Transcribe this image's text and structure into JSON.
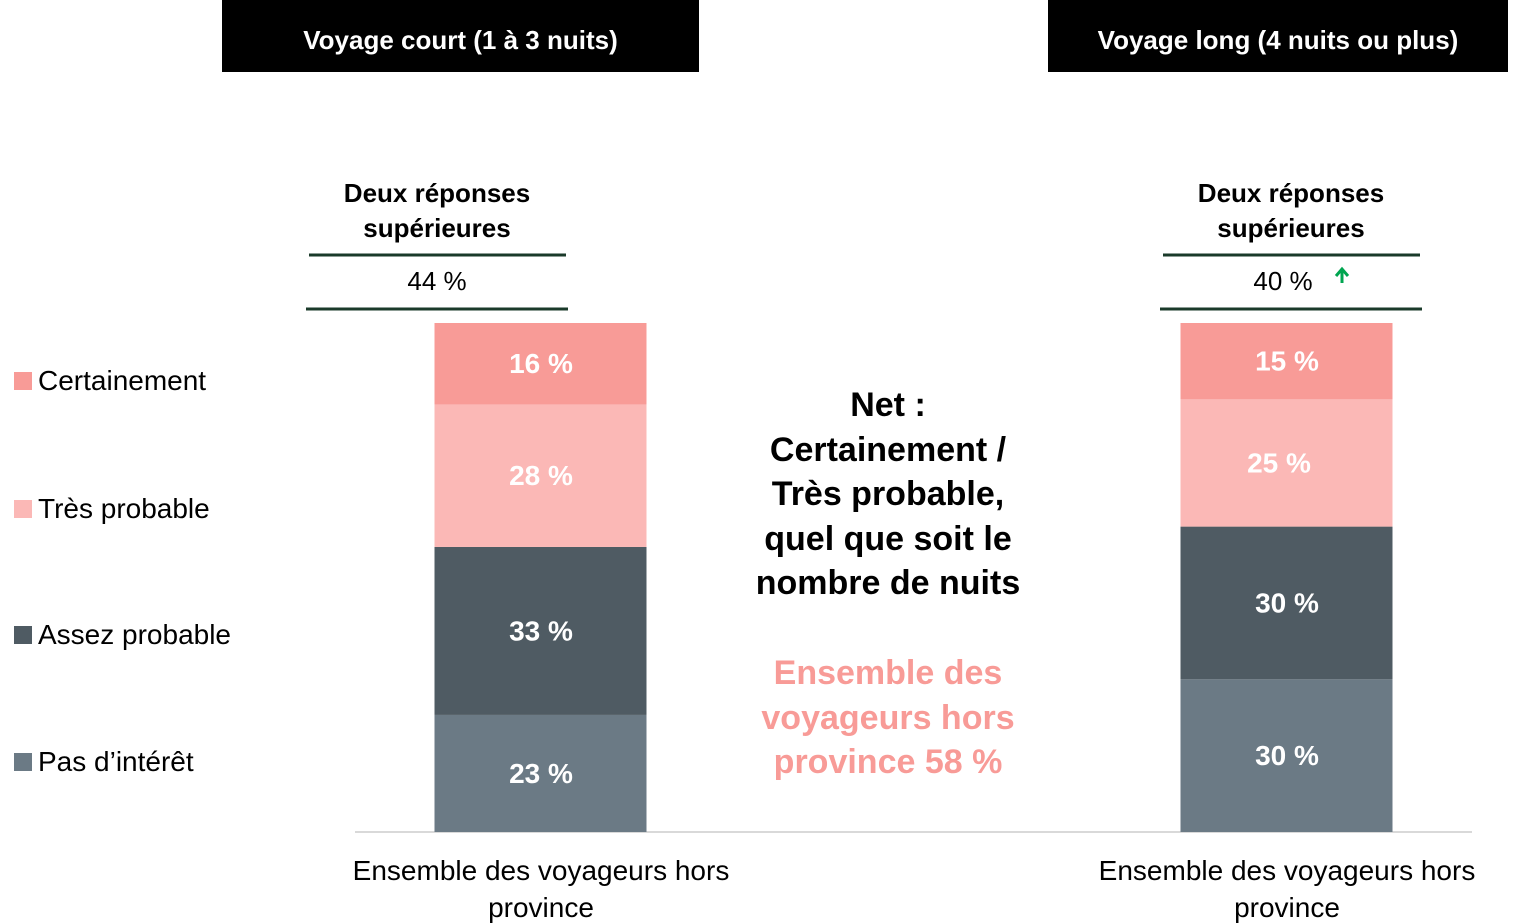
{
  "chart_data": {
    "type": "stacked_bar",
    "panels": [
      "Voyage court (1 à 3 nuits)",
      "Voyage long (4 nuits ou plus)"
    ],
    "categories": [
      "Ensemble des voyageurs hors province",
      "Ensemble des voyageurs hors province"
    ],
    "top_two": {
      "title": "Deux réponses supérieures",
      "values": [
        44,
        40
      ],
      "value_labels": [
        "44 %",
        "40 %"
      ]
    },
    "series": [
      {
        "name": "Certainement",
        "color": "#f89b97",
        "values": [
          16,
          15
        ],
        "value_labels": [
          "16 %",
          "15 %"
        ]
      },
      {
        "name": "Très probable",
        "color": "#fbb8b6",
        "values": [
          28,
          25
        ],
        "value_labels": [
          "28 %",
          "25 %"
        ]
      },
      {
        "name": "Assez probable",
        "color": "#4f5b63",
        "values": [
          33,
          30
        ],
        "value_labels": [
          "33 %",
          "30 %"
        ]
      },
      {
        "name": "Pas d’intérêt",
        "color": "#6b7a85",
        "values": [
          23,
          30
        ],
        "value_labels": [
          "23 %",
          "30 %"
        ]
      }
    ],
    "ylim": [
      0,
      100
    ],
    "annotations": [
      "Net : Certainement / Très probable, quel que soit le nombre de nuits",
      "Ensemble des voyageurs hors province 58 %"
    ]
  }
}
